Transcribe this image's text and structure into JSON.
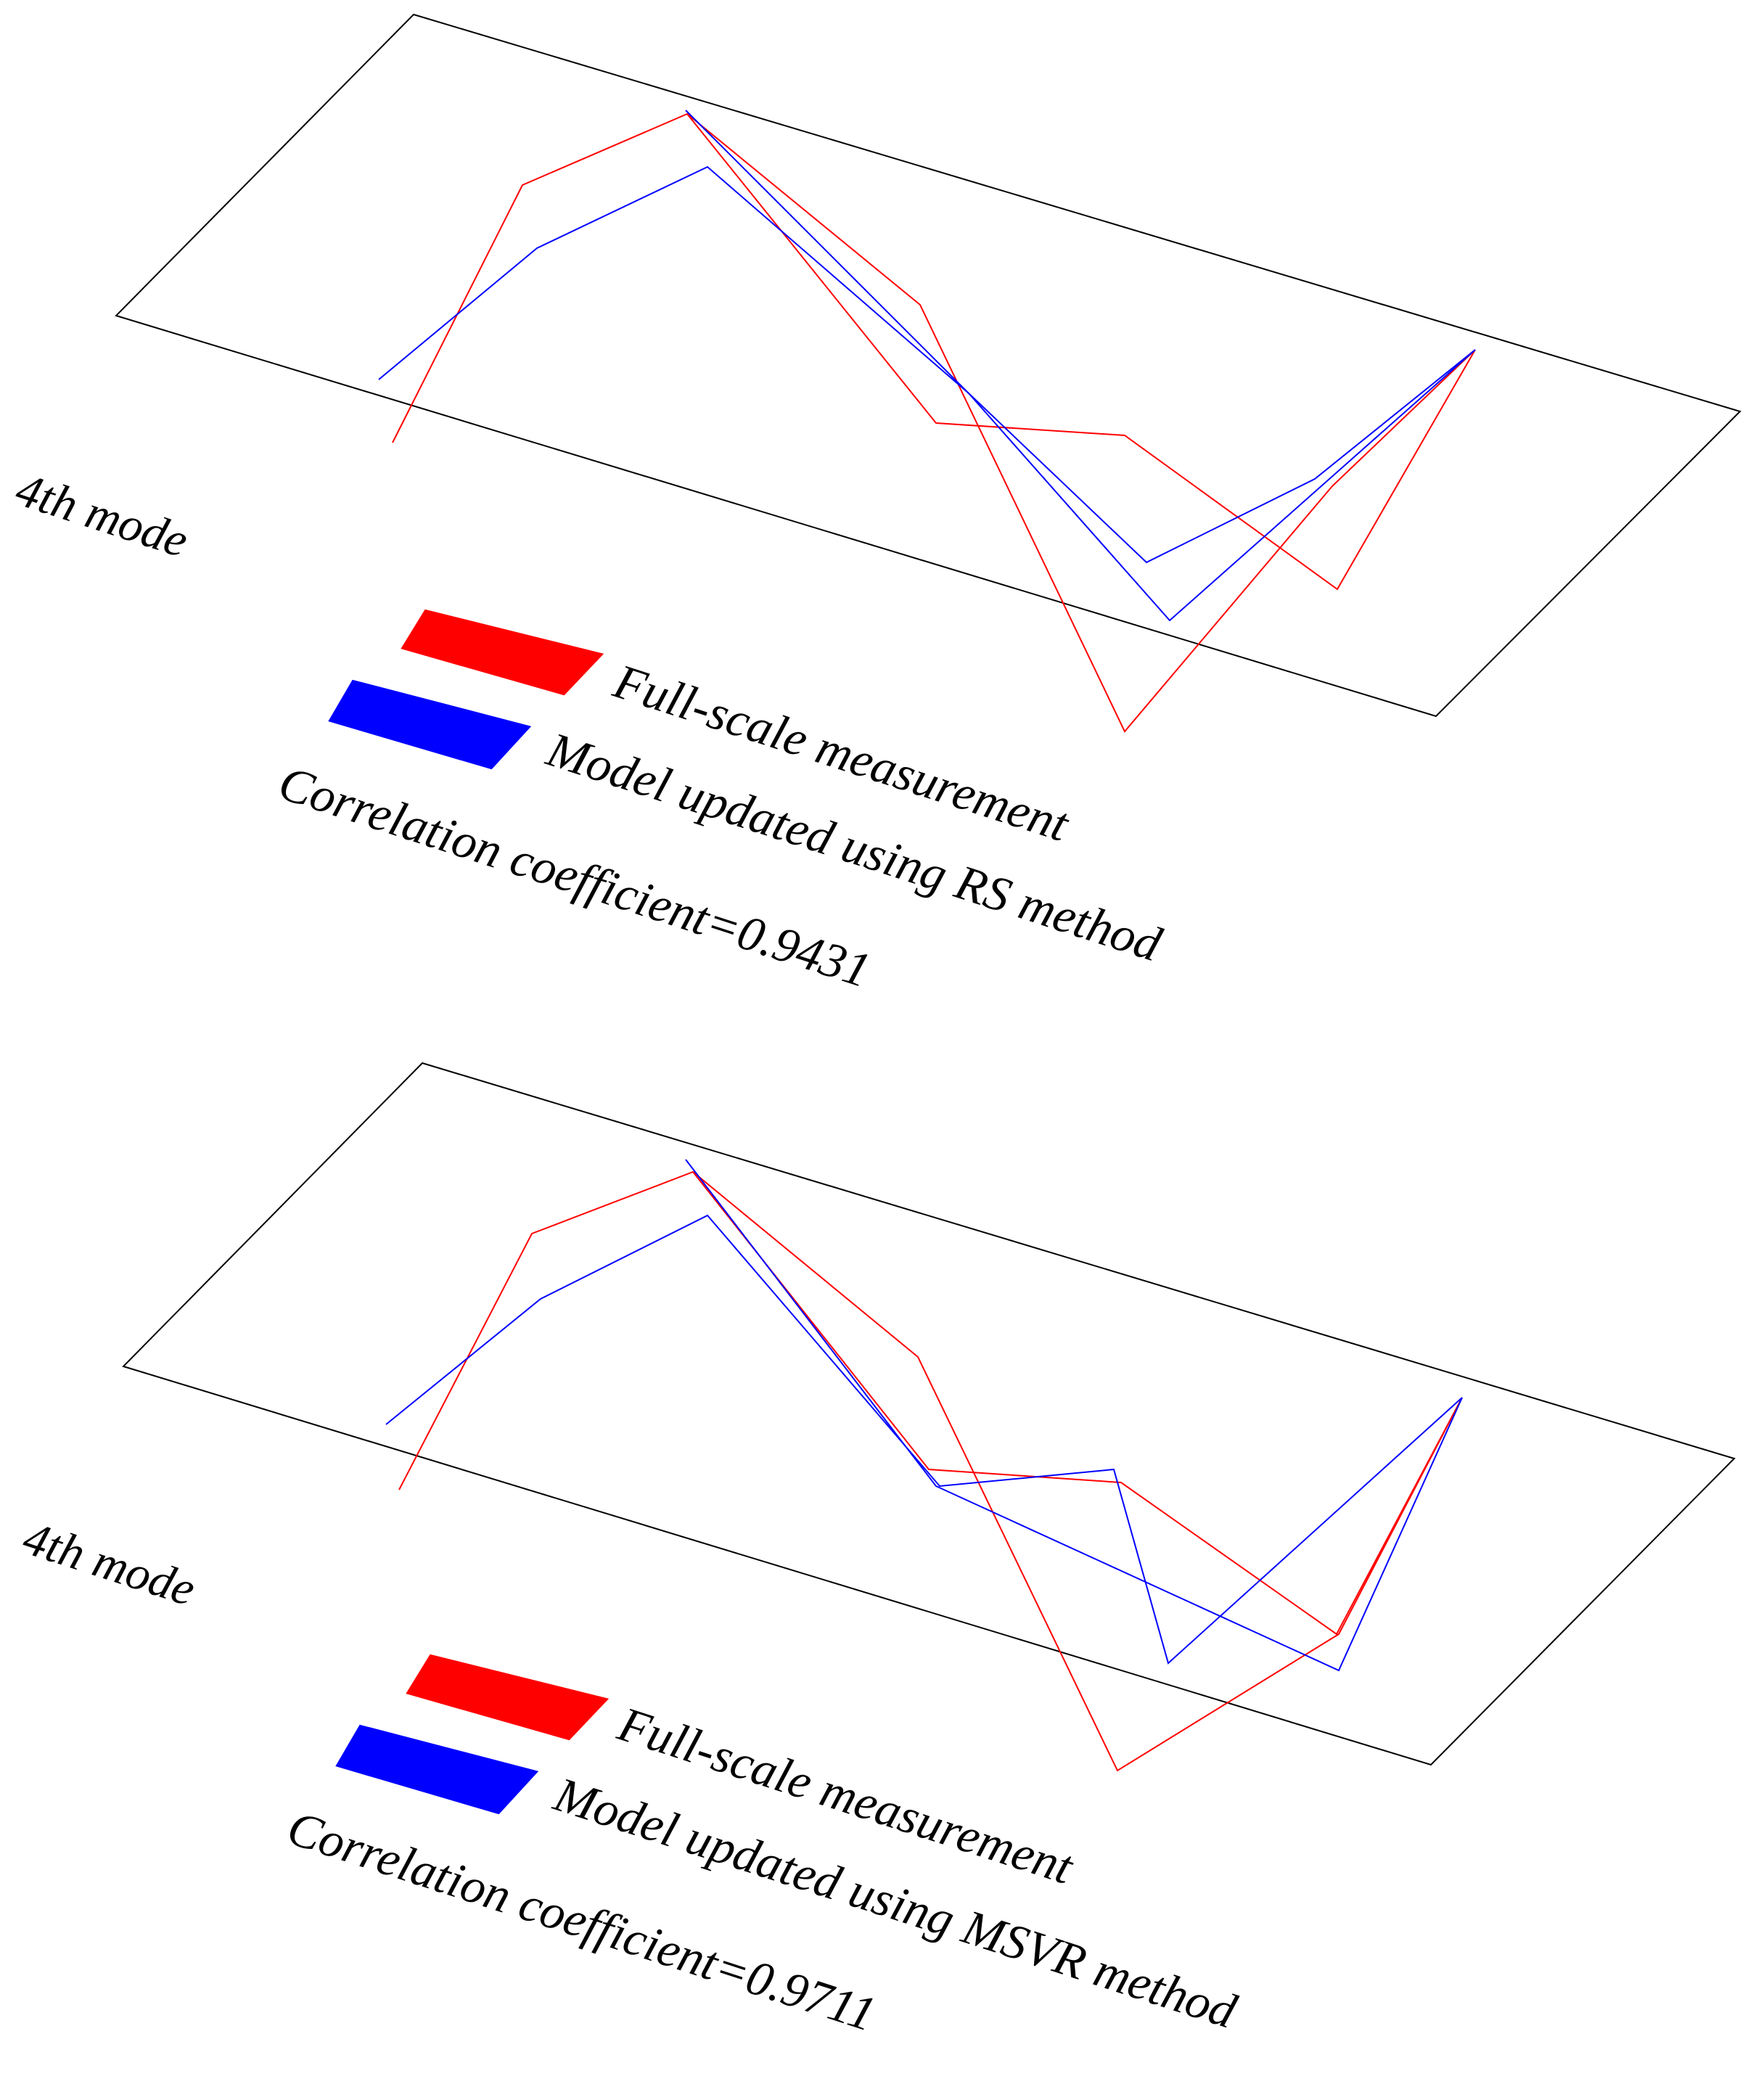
{
  "colors": {
    "measurement": "#ff0000",
    "model": "#0000ff",
    "frame": "#000000",
    "background": "#ffffff"
  },
  "panels": [
    {
      "mode_label": "4th mode",
      "legend": {
        "measurement_label": "Full-scale measurement",
        "model_label": "Model updated using RS method"
      },
      "correlation_text": "Correlation coefficient=0.9431"
    },
    {
      "mode_label": "4th mode",
      "legend": {
        "measurement_label": "Full-scale measurement",
        "model_label": "Model updated using MSVR method"
      },
      "correlation_text": "Correlation coefficient=0.9711"
    }
  ]
}
